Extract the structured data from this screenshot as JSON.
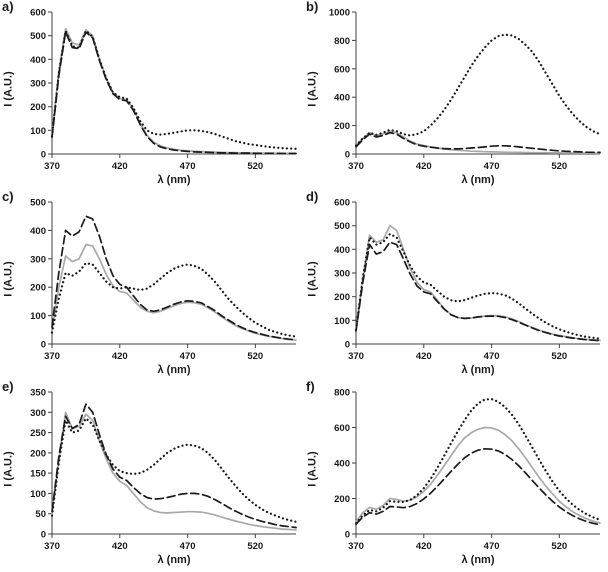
{
  "page": {
    "background": "#ffffff"
  },
  "x_nm": [
    370,
    375,
    380,
    385,
    390,
    395,
    400,
    405,
    410,
    415,
    420,
    425,
    430,
    435,
    440,
    445,
    450,
    455,
    460,
    465,
    470,
    475,
    480,
    485,
    490,
    495,
    500,
    505,
    510,
    515,
    520,
    525,
    530,
    535,
    540,
    545,
    550
  ],
  "colors": {
    "gray_series": "#a9a9a9",
    "black_series": "#1a1a1a",
    "axis": "#404040"
  },
  "chart_data": [
    {
      "type": "line",
      "panel": "a)",
      "ylabel": "I (A.U.)",
      "xlabel": "λ (nm)",
      "xlim": [
        370,
        550
      ],
      "xticks": [
        370,
        420,
        470,
        520
      ],
      "ylim": [
        0,
        600
      ],
      "ytick": 100,
      "grid": false,
      "legend": "none",
      "series": [
        {
          "name": "solid-gray",
          "line": "solid",
          "color": "#a9a9a9",
          "values": [
            80,
            350,
            530,
            470,
            460,
            525,
            500,
            400,
            320,
            260,
            235,
            230,
            190,
            130,
            80,
            50,
            35,
            25,
            20,
            16,
            14,
            12,
            10,
            9,
            8,
            7,
            6,
            6,
            5,
            5,
            4,
            4,
            4,
            3,
            3,
            3,
            3
          ]
        },
        {
          "name": "dashed-black",
          "line": "dashed",
          "color": "#1a1a1a",
          "values": [
            70,
            330,
            515,
            450,
            445,
            515,
            490,
            395,
            315,
            255,
            230,
            225,
            185,
            125,
            75,
            45,
            30,
            22,
            17,
            13,
            11,
            9,
            8,
            7,
            6,
            5,
            5,
            4,
            4,
            4,
            3,
            3,
            3,
            3,
            2,
            2,
            2
          ]
        },
        {
          "name": "dotted-black",
          "line": "dotted",
          "color": "#1a1a1a",
          "values": [
            75,
            340,
            520,
            455,
            450,
            520,
            495,
            400,
            320,
            260,
            240,
            235,
            195,
            140,
            100,
            85,
            82,
            85,
            90,
            95,
            100,
            100,
            98,
            92,
            85,
            75,
            65,
            55,
            48,
            42,
            38,
            34,
            30,
            27,
            25,
            23,
            22
          ]
        }
      ]
    },
    {
      "type": "line",
      "panel": "b)",
      "ylabel": "I (A.U.)",
      "xlabel": "λ (nm)",
      "xlim": [
        370,
        550
      ],
      "xticks": [
        370,
        420,
        470,
        520
      ],
      "ylim": [
        0,
        1000
      ],
      "ytick": 200,
      "grid": false,
      "legend": "none",
      "series": [
        {
          "name": "solid-gray",
          "line": "solid",
          "color": "#a9a9a9",
          "values": [
            60,
            110,
            150,
            130,
            140,
            160,
            150,
            120,
            90,
            70,
            60,
            50,
            42,
            35,
            30,
            26,
            23,
            20,
            18,
            16,
            15,
            14,
            13,
            12,
            11,
            10,
            10,
            9,
            9,
            8,
            8,
            7,
            7,
            6,
            6,
            6,
            5
          ]
        },
        {
          "name": "dashed-black",
          "line": "dashed",
          "color": "#1a1a1a",
          "values": [
            50,
            100,
            140,
            120,
            130,
            150,
            140,
            110,
            85,
            65,
            55,
            48,
            42,
            38,
            36,
            36,
            38,
            42,
            46,
            50,
            55,
            58,
            58,
            55,
            50,
            45,
            40,
            35,
            30,
            26,
            22,
            19,
            17,
            15,
            13,
            12,
            11
          ]
        },
        {
          "name": "dotted-black",
          "line": "dotted",
          "color": "#1a1a1a",
          "values": [
            60,
            110,
            150,
            135,
            150,
            170,
            160,
            140,
            130,
            140,
            160,
            200,
            250,
            310,
            380,
            460,
            540,
            620,
            690,
            750,
            800,
            830,
            840,
            835,
            810,
            770,
            720,
            650,
            570,
            490,
            410,
            340,
            280,
            230,
            190,
            160,
            140
          ]
        }
      ]
    },
    {
      "type": "line",
      "panel": "c)",
      "ylabel": "I (A.U.)",
      "xlabel": "λ (nm)",
      "xlim": [
        370,
        550
      ],
      "xticks": [
        370,
        420,
        470,
        520
      ],
      "ylim": [
        0,
        500
      ],
      "ytick": 100,
      "grid": false,
      "legend": "none",
      "series": [
        {
          "name": "solid-gray",
          "line": "solid",
          "color": "#a9a9a9",
          "values": [
            50,
            200,
            310,
            290,
            300,
            350,
            345,
            300,
            245,
            205,
            185,
            180,
            155,
            130,
            115,
            110,
            115,
            125,
            135,
            143,
            147,
            145,
            140,
            128,
            113,
            96,
            80,
            66,
            55,
            46,
            38,
            32,
            27,
            23,
            19,
            16,
            14
          ]
        },
        {
          "name": "dashed-black",
          "line": "dashed",
          "color": "#1a1a1a",
          "values": [
            60,
            250,
            400,
            380,
            395,
            450,
            440,
            380,
            300,
            240,
            210,
            200,
            170,
            140,
            120,
            115,
            120,
            130,
            140,
            148,
            152,
            150,
            145,
            132,
            118,
            100,
            85,
            70,
            58,
            48,
            40,
            34,
            28,
            24,
            20,
            17,
            15
          ]
        },
        {
          "name": "dotted-black",
          "line": "dotted",
          "color": "#1a1a1a",
          "values": [
            40,
            160,
            250,
            240,
            255,
            285,
            280,
            250,
            220,
            200,
            195,
            200,
            195,
            190,
            195,
            210,
            230,
            250,
            265,
            275,
            280,
            275,
            265,
            245,
            220,
            190,
            160,
            135,
            112,
            92,
            75,
            62,
            50,
            42,
            35,
            30,
            26
          ]
        }
      ]
    },
    {
      "type": "line",
      "panel": "d)",
      "ylabel": "I (A.U.)",
      "xlabel": "λ (nm)",
      "xlim": [
        370,
        550
      ],
      "xticks": [
        370,
        420,
        470,
        520
      ],
      "ylim": [
        0,
        600
      ],
      "ytick": 100,
      "grid": false,
      "legend": "none",
      "series": [
        {
          "name": "solid-gray",
          "line": "solid",
          "color": "#a9a9a9",
          "values": [
            60,
            280,
            460,
            430,
            440,
            500,
            480,
            400,
            320,
            260,
            230,
            220,
            185,
            150,
            125,
            112,
            108,
            110,
            115,
            118,
            120,
            119,
            115,
            106,
            95,
            82,
            70,
            59,
            50,
            42,
            36,
            31,
            26,
            22,
            19,
            17,
            15
          ]
        },
        {
          "name": "dashed-black",
          "line": "dashed",
          "color": "#1a1a1a",
          "values": [
            55,
            260,
            420,
            380,
            390,
            430,
            420,
            360,
            295,
            245,
            220,
            212,
            180,
            148,
            124,
            112,
            108,
            110,
            114,
            117,
            118,
            117,
            112,
            103,
            92,
            80,
            68,
            57,
            48,
            40,
            34,
            29,
            25,
            21,
            18,
            16,
            14
          ]
        },
        {
          "name": "dotted-black",
          "line": "dotted",
          "color": "#1a1a1a",
          "values": [
            60,
            280,
            450,
            420,
            430,
            465,
            450,
            390,
            330,
            285,
            260,
            250,
            225,
            200,
            185,
            180,
            185,
            195,
            205,
            212,
            215,
            213,
            206,
            192,
            172,
            150,
            128,
            108,
            90,
            75,
            62,
            52,
            43,
            36,
            30,
            26,
            22
          ]
        }
      ]
    },
    {
      "type": "line",
      "panel": "e)",
      "ylabel": "I (A.U.)",
      "xlabel": "λ (nm)",
      "xlim": [
        370,
        550
      ],
      "xticks": [
        370,
        420,
        470,
        520
      ],
      "ylim": [
        0,
        350
      ],
      "ytick": 50,
      "grid": false,
      "legend": "none",
      "series": [
        {
          "name": "solid-gray",
          "line": "solid",
          "color": "#a9a9a9",
          "values": [
            50,
            180,
            300,
            260,
            265,
            295,
            280,
            230,
            185,
            150,
            130,
            120,
            100,
            80,
            65,
            57,
            53,
            52,
            53,
            54,
            55,
            55,
            54,
            51,
            47,
            42,
            37,
            32,
            28,
            24,
            21,
            18,
            16,
            14,
            12,
            11,
            10
          ]
        },
        {
          "name": "dashed-black",
          "line": "dashed",
          "color": "#1a1a1a",
          "values": [
            55,
            190,
            290,
            260,
            270,
            320,
            300,
            245,
            195,
            160,
            140,
            132,
            115,
            100,
            90,
            86,
            87,
            90,
            94,
            98,
            100,
            100,
            98,
            93,
            85,
            76,
            66,
            57,
            49,
            42,
            36,
            31,
            27,
            23,
            20,
            18,
            16
          ]
        },
        {
          "name": "dotted-black",
          "line": "dotted",
          "color": "#1a1a1a",
          "values": [
            45,
            175,
            280,
            250,
            255,
            285,
            270,
            230,
            195,
            170,
            155,
            150,
            148,
            150,
            158,
            170,
            185,
            200,
            210,
            217,
            220,
            218,
            212,
            200,
            183,
            162,
            140,
            120,
            101,
            85,
            72,
            61,
            52,
            45,
            39,
            34,
            30
          ]
        }
      ]
    },
    {
      "type": "line",
      "panel": "f)",
      "ylabel": "I (A.U.)",
      "xlabel": "λ (nm)",
      "xlim": [
        370,
        550
      ],
      "xticks": [
        370,
        420,
        470,
        520
      ],
      "ylim": [
        0,
        800
      ],
      "ytick": 200,
      "grid": false,
      "legend": "none",
      "series": [
        {
          "name": "solid-gray",
          "line": "solid",
          "color": "#a9a9a9",
          "values": [
            70,
            120,
            150,
            140,
            160,
            200,
            195,
            185,
            190,
            210,
            240,
            280,
            330,
            385,
            440,
            495,
            540,
            570,
            590,
            600,
            598,
            585,
            560,
            525,
            480,
            430,
            375,
            320,
            270,
            225,
            185,
            152,
            125,
            103,
            86,
            72,
            62
          ]
        },
        {
          "name": "dashed-black",
          "line": "dashed",
          "color": "#1a1a1a",
          "values": [
            55,
            95,
            120,
            112,
            128,
            155,
            152,
            148,
            155,
            172,
            198,
            230,
            268,
            310,
            352,
            392,
            428,
            455,
            472,
            480,
            478,
            468,
            448,
            420,
            385,
            345,
            302,
            260,
            220,
            184,
            152,
            125,
            103,
            85,
            71,
            60,
            52
          ]
        },
        {
          "name": "dotted-black",
          "line": "dotted",
          "color": "#1a1a1a",
          "values": [
            60,
            105,
            135,
            128,
            148,
            185,
            182,
            180,
            192,
            218,
            258,
            310,
            372,
            440,
            510,
            578,
            640,
            695,
            735,
            758,
            760,
            745,
            715,
            672,
            618,
            555,
            488,
            420,
            355,
            295,
            243,
            200,
            164,
            135,
            112,
            94,
            80
          ]
        }
      ]
    }
  ]
}
